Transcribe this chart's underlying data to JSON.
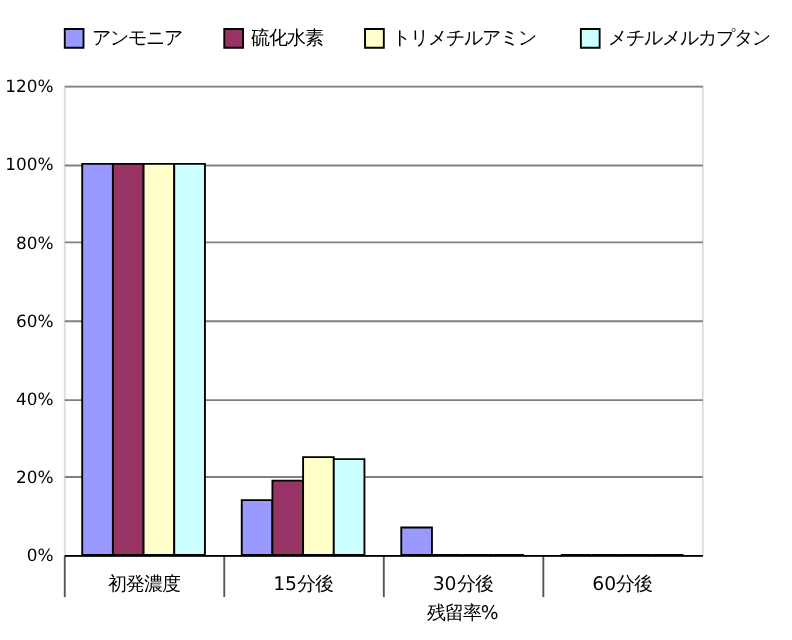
{
  "chart_data": {
    "type": "bar",
    "categories": [
      "初発濃度",
      "15分後",
      "30分後",
      "60分後"
    ],
    "series": [
      {
        "name": "アンモニア",
        "color": "#9999ff",
        "values": [
          100,
          14,
          7,
          0
        ]
      },
      {
        "name": "硫化水素",
        "color": "#993366",
        "values": [
          100,
          19,
          0,
          0
        ]
      },
      {
        "name": "トリメチルアミン",
        "color": "#ffffcc",
        "values": [
          100,
          25,
          0,
          0
        ]
      },
      {
        "name": "メチルメルカプタン",
        "color": "#ccffff",
        "values": [
          100,
          24.5,
          0,
          0
        ]
      }
    ],
    "ylim": [
      0,
      120
    ],
    "yticks": [
      {
        "value": 0,
        "label": "0%"
      },
      {
        "value": 20,
        "label": "20%"
      },
      {
        "value": 40,
        "label": "40%"
      },
      {
        "value": 60,
        "label": "60%"
      },
      {
        "value": 80,
        "label": "80%"
      },
      {
        "value": 100,
        "label": "100%"
      },
      {
        "value": 120,
        "label": "120%"
      }
    ],
    "grid": "y",
    "legend": "top",
    "annotations": [
      "残留率%"
    ]
  }
}
